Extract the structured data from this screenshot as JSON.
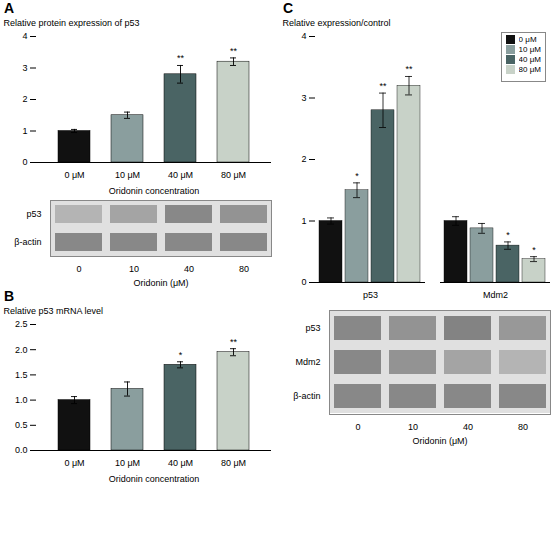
{
  "chart_data": [
    {
      "type": "bar",
      "title": "A",
      "categories": [
        "0 μM",
        "10 μM",
        "40 μM",
        "80 μM"
      ],
      "values": [
        1.0,
        1.5,
        2.8,
        3.2
      ],
      "errors": [
        0.05,
        0.1,
        0.28,
        0.12
      ],
      "colors": [
        "#111111",
        "#8a9e9e",
        "#4a6464",
        "#c8d2c8"
      ],
      "ylabel": "Relative protein expression of p53",
      "xlabel": "Oridonin concentration",
      "ylim": [
        0,
        4
      ],
      "yticks": [
        0,
        1,
        2,
        3,
        4
      ],
      "annotations": [
        null,
        null,
        "**",
        "**"
      ]
    },
    {
      "type": "heatmap",
      "x": [
        "0",
        "10",
        "40",
        "80"
      ],
      "y": [
        "p53",
        "β-actin"
      ],
      "cells": [
        [
          0.45,
          0.55,
          0.72,
          0.65
        ],
        [
          0.72,
          0.72,
          0.72,
          0.72
        ]
      ],
      "xlabel": "Oridonin (μM)"
    },
    {
      "type": "bar",
      "title": "B",
      "categories": [
        "0 μM",
        "10 μM",
        "40 μM",
        "80 μM"
      ],
      "values": [
        1.0,
        1.22,
        1.7,
        1.95
      ],
      "errors": [
        0.07,
        0.14,
        0.06,
        0.07
      ],
      "colors": [
        "#111111",
        "#8a9e9e",
        "#4a6464",
        "#c8d2c8"
      ],
      "ylabel": "Relative p53 mRNA level",
      "xlabel": "Oridonin concentration",
      "ylim": [
        0,
        2.5
      ],
      "yticks": [
        {
          "value": 0,
          "label": "0.0"
        },
        0.5,
        {
          "value": 1,
          "label": "1.0"
        },
        1.5,
        {
          "value": 2,
          "label": "2.0"
        },
        2.5
      ],
      "annotations": [
        null,
        null,
        "*",
        "**"
      ]
    },
    {
      "type": "grouped_bar",
      "title": "C",
      "categories": [
        "p53",
        "Mdm2"
      ],
      "series": [
        {
          "name": "0 μM",
          "color": "#111111",
          "values": [
            1.0,
            1.0
          ],
          "errors": [
            0.05,
            0.07
          ],
          "annotations": [
            null,
            null
          ]
        },
        {
          "name": "10 μM",
          "color": "#8a9e9e",
          "values": [
            1.5,
            0.88
          ],
          "errors": [
            0.12,
            0.08
          ],
          "annotations": [
            "*",
            null
          ]
        },
        {
          "name": "40 μM",
          "color": "#4a6464",
          "values": [
            2.8,
            0.6
          ],
          "errors": [
            0.28,
            0.06
          ],
          "annotations": [
            "**",
            "*"
          ]
        },
        {
          "name": "80 μM",
          "color": "#c8d2c8",
          "values": [
            3.2,
            0.38
          ],
          "errors": [
            0.15,
            0.04
          ],
          "annotations": [
            "**",
            "*"
          ]
        }
      ],
      "ylabel": "Relative expression/control",
      "ylim": [
        0,
        4
      ],
      "yticks": [
        0,
        1,
        2,
        3,
        4
      ],
      "legend": "upper right"
    },
    {
      "type": "heatmap",
      "x": [
        "0",
        "10",
        "40",
        "80"
      ],
      "y": [
        "p53",
        "Mdm2",
        "β-actin"
      ],
      "cells": [
        [
          0.72,
          0.65,
          0.75,
          0.62
        ],
        [
          0.72,
          0.65,
          0.55,
          0.45
        ],
        [
          0.72,
          0.72,
          0.72,
          0.72
        ]
      ],
      "xlabel": "Oridonin (μM)"
    }
  ]
}
